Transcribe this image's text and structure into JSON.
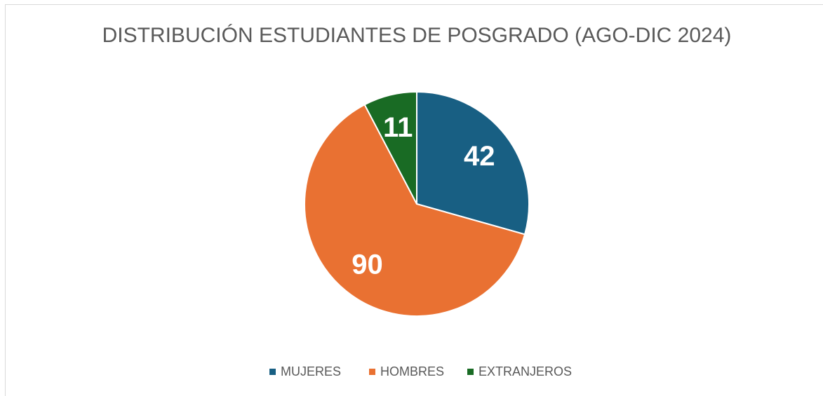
{
  "chart_data": {
    "type": "pie",
    "title": "DISTRIBUCIÓN ESTUDIANTES DE POSGRADO (AGO-DIC 2024)",
    "categories": [
      "MUJERES",
      "HOMBRES",
      "EXTRANJEROS"
    ],
    "values": [
      42,
      90,
      11
    ],
    "colors": [
      "#185f83",
      "#e97132",
      "#196b24"
    ],
    "legend": "bottom"
  }
}
